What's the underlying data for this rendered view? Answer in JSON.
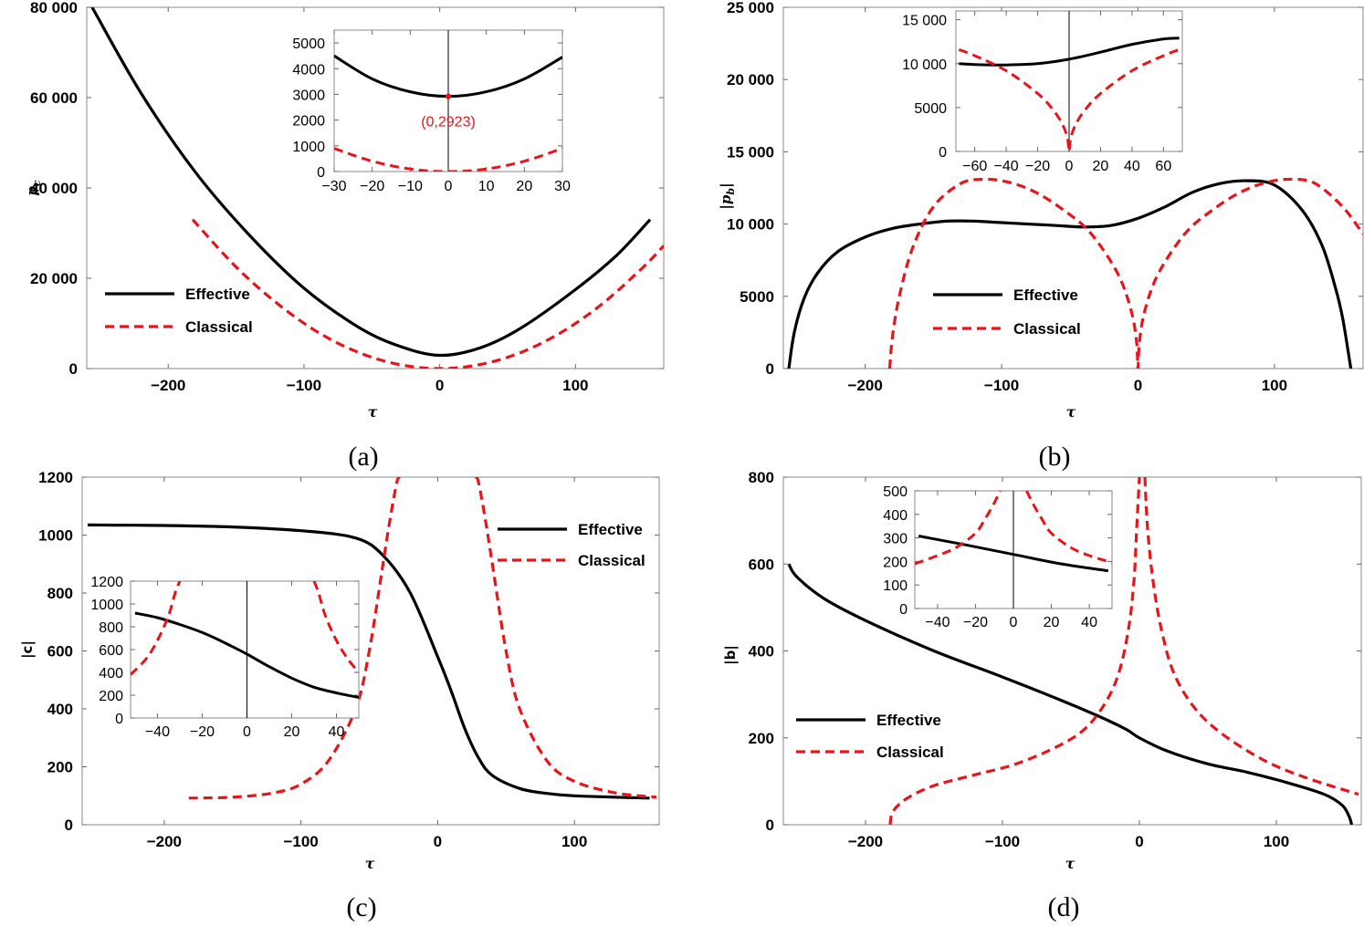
{
  "colors": {
    "effective": "#000000",
    "classical": "#e8141c",
    "frame": "#8a8a8a"
  },
  "chart_data": [
    {
      "type": "line",
      "panel_label": "(a)",
      "xlabel": "τ",
      "ylabel": "pc",
      "xlim": [
        -260,
        165
      ],
      "ylim": [
        0,
        80000
      ],
      "xticks": [
        -200,
        -100,
        0,
        100
      ],
      "xtick_labels": [
        "−200",
        "−100",
        "0",
        "100"
      ],
      "yticks": [
        0,
        20000,
        40000,
        60000,
        80000
      ],
      "ytick_labels": [
        "0",
        "20 000",
        "40 000",
        "60 000",
        "80 000"
      ],
      "legend": {
        "position": "lower-left",
        "entries": [
          "Effective",
          "Classical"
        ]
      },
      "series": [
        {
          "name": "Effective",
          "style": "solid",
          "x": [
            -256,
            -220,
            -180,
            -140,
            -100,
            -60,
            -30,
            0,
            30,
            60,
            100,
            130,
            155
          ],
          "y": [
            80000,
            61000,
            43500,
            29500,
            17800,
            9200,
            5000,
            2923,
            4600,
            9000,
            17500,
            25000,
            33000
          ]
        },
        {
          "name": "Classical",
          "style": "dashed",
          "x": [
            -182,
            -150,
            -120,
            -90,
            -60,
            -30,
            0,
            30,
            60,
            90,
            120,
            150,
            165
          ],
          "y": [
            33000,
            22500,
            14500,
            8100,
            3600,
            900,
            0,
            900,
            3600,
            8100,
            14400,
            22500,
            27200
          ]
        }
      ],
      "inset": {
        "xlim": [
          -30,
          30
        ],
        "ylim": [
          0,
          5500
        ],
        "xticks": [
          -30,
          -20,
          -10,
          0,
          10,
          20,
          30
        ],
        "xtick_labels": [
          "−30",
          "−20",
          "−10",
          "0",
          "10",
          "20",
          "30"
        ],
        "yticks": [
          0,
          1000,
          2000,
          3000,
          4000,
          5000
        ],
        "ytick_labels": [
          "0",
          "1000",
          "2000",
          "3000",
          "4000",
          "5000"
        ],
        "annotation": {
          "text": "(0,2923)",
          "x": 0,
          "y": 2923
        },
        "series": [
          {
            "name": "Effective",
            "style": "solid",
            "x": [
              -30,
              -20,
              -10,
              0,
              10,
              20,
              30
            ],
            "y": [
              4500,
              3600,
              3100,
              2923,
              3100,
              3600,
              4450
            ]
          },
          {
            "name": "Classical",
            "style": "dashed",
            "x": [
              -30,
              -20,
              -10,
              0,
              10,
              20,
              30
            ],
            "y": [
              900,
              400,
              100,
              0,
              100,
              400,
              900
            ]
          }
        ]
      }
    },
    {
      "type": "line",
      "panel_label": "(b)",
      "xlabel": "τ",
      "ylabel": "|pb|",
      "xlim": [
        -260,
        165
      ],
      "ylim": [
        0,
        25000
      ],
      "xticks": [
        -200,
        -100,
        0,
        100
      ],
      "xtick_labels": [
        "−200",
        "−100",
        "0",
        "100"
      ],
      "yticks": [
        0,
        5000,
        10000,
        15000,
        20000,
        25000
      ],
      "ytick_labels": [
        "0",
        "5000",
        "10 000",
        "15 000",
        "20 000",
        "25 000"
      ],
      "legend": {
        "position": "lower-center",
        "entries": [
          "Effective",
          "Classical"
        ]
      },
      "series": [
        {
          "name": "Effective",
          "style": "solid",
          "x": [
            -256,
            -252,
            -245,
            -235,
            -220,
            -200,
            -180,
            -160,
            -140,
            -120,
            -100,
            -80,
            -60,
            -40,
            -20,
            0,
            20,
            40,
            60,
            80,
            100,
            120,
            135,
            145,
            150,
            154,
            156
          ],
          "y": [
            0,
            2500,
            4800,
            6600,
            8100,
            9100,
            9700,
            10000,
            10200,
            10200,
            10100,
            10000,
            9900,
            9800,
            9900,
            10400,
            11200,
            12200,
            12800,
            13000,
            12700,
            11000,
            8500,
            5500,
            3500,
            1200,
            0
          ]
        },
        {
          "name": "Classical",
          "style": "dashed",
          "x": [
            -182,
            -180,
            -175,
            -165,
            -150,
            -130,
            -113,
            -95,
            -75,
            -55,
            -35,
            -15,
            -5,
            -1,
            0,
            1,
            5,
            15,
            35,
            55,
            75,
            95,
            113,
            130,
            150,
            165
          ],
          "y": [
            0,
            2200,
            5000,
            8400,
            11200,
            12800,
            13100,
            12900,
            12200,
            11000,
            9400,
            6600,
            4000,
            1800,
            0,
            1800,
            4000,
            6600,
            9400,
            11000,
            12200,
            12900,
            13100,
            12800,
            11200,
            9300
          ]
        }
      ],
      "inset": {
        "xlim": [
          -72,
          72
        ],
        "ylim": [
          0,
          16000
        ],
        "xticks": [
          -60,
          -40,
          -20,
          0,
          20,
          40,
          60
        ],
        "xtick_labels": [
          "−60",
          "−40",
          "−20",
          "0",
          "20",
          "40",
          "60"
        ],
        "yticks": [
          0,
          5000,
          10000,
          15000
        ],
        "ytick_labels": [
          "0",
          "5000",
          "10 000",
          "15 000"
        ],
        "series": [
          {
            "name": "Effective",
            "style": "solid",
            "x": [
              -70,
              -60,
              -40,
              -20,
              0,
              20,
              40,
              60,
              70
            ],
            "y": [
              10000,
              9900,
              9850,
              10000,
              10500,
              11300,
              12200,
              12800,
              12900
            ]
          },
          {
            "name": "Classical",
            "style": "dashed",
            "x": [
              -70,
              -60,
              -40,
              -20,
              -10,
              -4,
              -1,
              0,
              1,
              4,
              10,
              20,
              40,
              60,
              70
            ],
            "y": [
              11600,
              10900,
              9200,
              6600,
              4700,
              3000,
              1500,
              0,
              1500,
              3000,
              4700,
              6600,
              9200,
              10900,
              11600
            ]
          }
        ]
      }
    },
    {
      "type": "line",
      "panel_label": "(c)",
      "xlabel": "τ",
      "ylabel": "|c|",
      "xlim": [
        -260,
        162
      ],
      "ylim": [
        0,
        1200
      ],
      "xticks": [
        -200,
        -100,
        0,
        100
      ],
      "xtick_labels": [
        "−200",
        "−100",
        "0",
        "100"
      ],
      "yticks": [
        0,
        200,
        400,
        600,
        800,
        1000,
        1200
      ],
      "ytick_labels": [
        "0",
        "200",
        "400",
        "600",
        "800",
        "1000",
        "1200"
      ],
      "legend": {
        "position": "top-right",
        "entries": [
          "Effective",
          "Classical"
        ]
      },
      "series": [
        {
          "name": "Effective",
          "style": "solid",
          "x": [
            -256,
            -200,
            -150,
            -100,
            -60,
            -40,
            -20,
            0,
            10,
            20,
            30,
            40,
            60,
            80,
            100,
            130,
            155
          ],
          "y": [
            1035,
            1033,
            1028,
            1015,
            990,
            930,
            800,
            580,
            460,
            330,
            230,
            170,
            125,
            108,
            100,
            95,
            92
          ]
        },
        {
          "name": "Classical",
          "style": "dashed",
          "x": [
            -182,
            -150,
            -120,
            -100,
            -80,
            -60,
            -50,
            -40,
            -35,
            -30,
            -28
          ],
          "y": [
            92,
            95,
            110,
            140,
            220,
            400,
            600,
            900,
            1050,
            1180,
            1200
          ]
        },
        {
          "name": "Classical",
          "style": "dashed",
          "x": [
            28,
            30,
            35,
            40,
            50,
            60,
            80,
            100,
            130,
            160
          ],
          "y": [
            1200,
            1180,
            1050,
            900,
            600,
            400,
            220,
            150,
            110,
            95
          ]
        }
      ],
      "inset": {
        "xlim": [
          -52,
          50
        ],
        "ylim": [
          0,
          1200
        ],
        "xticks": [
          -40,
          -20,
          0,
          20,
          40
        ],
        "xtick_labels": [
          "−40",
          "−20",
          "0",
          "20",
          "40"
        ],
        "yticks": [
          0,
          200,
          400,
          600,
          800,
          1000,
          1200
        ],
        "ytick_labels": [
          "0",
          "200",
          "400",
          "600",
          "800",
          "1000",
          "1200"
        ],
        "series": [
          {
            "name": "Effective",
            "style": "solid",
            "x": [
              -50,
              -40,
              -30,
              -20,
              -10,
              0,
              10,
              20,
              30,
              40,
              50
            ],
            "y": [
              920,
              880,
              820,
              750,
              660,
              560,
              450,
              350,
              270,
              220,
              180
            ]
          },
          {
            "name": "Classical",
            "style": "dashed",
            "x": [
              -52,
              -45,
              -40,
              -35,
              -32,
              -30
            ],
            "y": [
              380,
              520,
              680,
              900,
              1100,
              1200
            ]
          },
          {
            "name": "Classical",
            "style": "dashed",
            "x": [
              30,
              32,
              35,
              40,
              45,
              50
            ],
            "y": [
              1200,
              1100,
              900,
              680,
              520,
              400
            ]
          }
        ]
      }
    },
    {
      "type": "line",
      "panel_label": "(d)",
      "xlabel": "τ",
      "ylabel": "|b|",
      "xlim": [
        -260,
        162
      ],
      "ylim": [
        0,
        800
      ],
      "xticks": [
        -200,
        -100,
        0,
        100
      ],
      "xtick_labels": [
        "−200",
        "−100",
        "0",
        "100"
      ],
      "yticks": [
        0,
        200,
        400,
        600,
        800
      ],
      "ytick_labels": [
        "0",
        "200",
        "400",
        "600",
        "800"
      ],
      "legend": {
        "position": "lower-left",
        "entries": [
          "Effective",
          "Classical"
        ]
      },
      "series": [
        {
          "name": "Effective",
          "style": "solid",
          "x": [
            -256,
            -250,
            -230,
            -200,
            -150,
            -100,
            -60,
            -30,
            -10,
            0,
            20,
            50,
            80,
            110,
            135,
            148,
            153,
            155
          ],
          "y": [
            600,
            570,
            520,
            470,
            400,
            340,
            290,
            250,
            220,
            200,
            170,
            140,
            120,
            95,
            70,
            45,
            20,
            0
          ]
        },
        {
          "name": "Classical",
          "style": "dashed",
          "x": [
            -182,
            -180,
            -170,
            -150,
            -120,
            -90,
            -60,
            -40,
            -25,
            -15,
            -8,
            -4,
            -2,
            0
          ],
          "y": [
            0,
            30,
            60,
            90,
            115,
            140,
            180,
            220,
            280,
            350,
            450,
            560,
            680,
            800
          ]
        },
        {
          "name": "Classical",
          "style": "dashed",
          "x": [
            4,
            6,
            10,
            16,
            25,
            40,
            60,
            90,
            120,
            160
          ],
          "y": [
            800,
            680,
            560,
            450,
            350,
            270,
            210,
            150,
            110,
            70
          ]
        }
      ],
      "inset": {
        "xlim": [
          -52,
          52
        ],
        "ylim": [
          0,
          500
        ],
        "xticks": [
          -40,
          -20,
          0,
          20,
          40
        ],
        "xtick_labels": [
          "−40",
          "−20",
          "0",
          "20",
          "40"
        ],
        "yticks": [
          0,
          100,
          200,
          300,
          400,
          500
        ],
        "ytick_labels": [
          "0",
          "100",
          "200",
          "300",
          "400",
          "500"
        ],
        "series": [
          {
            "name": "Effective",
            "style": "solid",
            "x": [
              -50,
              -25,
              0,
              25,
              50
            ],
            "y": [
              308,
              270,
              230,
              190,
              160
            ]
          },
          {
            "name": "Classical",
            "style": "dashed",
            "x": [
              -52,
              -40,
              -30,
              -20,
              -15,
              -10,
              -7
            ],
            "y": [
              190,
              225,
              260,
              320,
              380,
              450,
              500
            ]
          },
          {
            "name": "Classical",
            "style": "dashed",
            "x": [
              7,
              10,
              15,
              20,
              30,
              40,
              52
            ],
            "y": [
              500,
              450,
              380,
              320,
              260,
              225,
              195
            ]
          }
        ]
      }
    }
  ]
}
